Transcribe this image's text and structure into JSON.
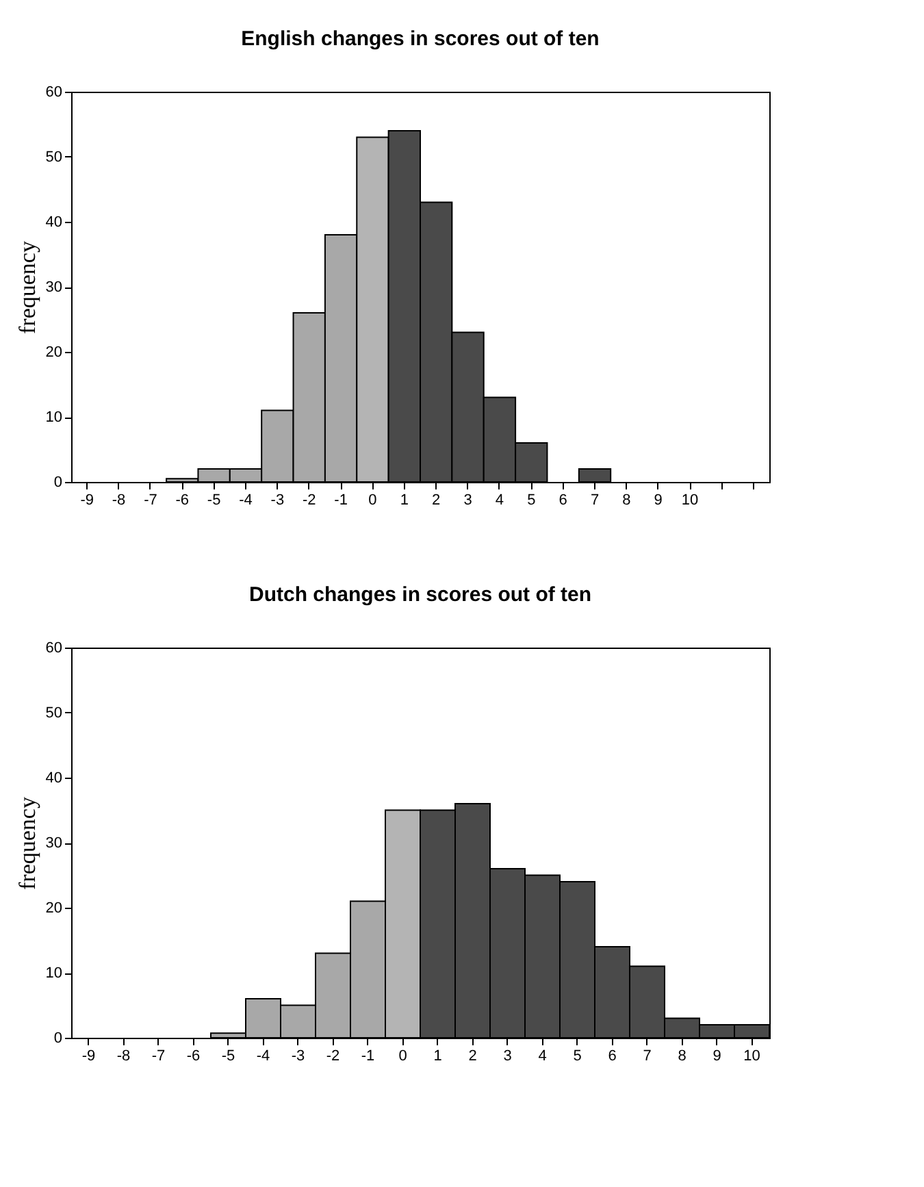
{
  "chart_data": [
    {
      "type": "bar",
      "title": "English changes in scores out of ten",
      "ylabel": "frequency",
      "categories": [
        "-9",
        "-8",
        "-7",
        "-6",
        "-5",
        "-4",
        "-3",
        "-2",
        "-1",
        "0",
        "1",
        "2",
        "3",
        "4",
        "5",
        "6",
        "7",
        "8",
        "9",
        "10",
        null,
        null
      ],
      "values": [
        0,
        0,
        0,
        0.5,
        2,
        2,
        11,
        26,
        38,
        53,
        54,
        43,
        23,
        13,
        6,
        0,
        2,
        0,
        0,
        0,
        0,
        0
      ],
      "colors": [
        "#a8a8a8",
        "#a8a8a8",
        "#a8a8a8",
        "#a8a8a8",
        "#a8a8a8",
        "#a8a8a8",
        "#a8a8a8",
        "#a8a8a8",
        "#a8a8a8",
        "#b4b4b4",
        "#4a4a4a",
        "#4a4a4a",
        "#4a4a4a",
        "#4a4a4a",
        "#4a4a4a",
        "#4a4a4a",
        "#4a4a4a",
        "#4a4a4a",
        "#4a4a4a",
        "#4a4a4a",
        "#4a4a4a",
        "#4a4a4a"
      ],
      "ylim": [
        0,
        60
      ],
      "yticks": [
        0,
        10,
        20,
        30,
        40,
        50,
        60
      ]
    },
    {
      "type": "bar",
      "title": "Dutch changes in scores out of ten",
      "ylabel": "frequency",
      "categories": [
        "-9",
        "-8",
        "-7",
        "-6",
        "-5",
        "-4",
        "-3",
        "-2",
        "-1",
        "0",
        "1",
        "2",
        "3",
        "4",
        "5",
        "6",
        "7",
        "8",
        "9",
        "10"
      ],
      "values": [
        0,
        0,
        0,
        0,
        0.7,
        6,
        5,
        13,
        21,
        35,
        35,
        36,
        26,
        25,
        24,
        14,
        11,
        3,
        2,
        2
      ],
      "colors": [
        "#a8a8a8",
        "#a8a8a8",
        "#a8a8a8",
        "#a8a8a8",
        "#a8a8a8",
        "#a8a8a8",
        "#a8a8a8",
        "#a8a8a8",
        "#a8a8a8",
        "#b4b4b4",
        "#4a4a4a",
        "#4a4a4a",
        "#4a4a4a",
        "#4a4a4a",
        "#4a4a4a",
        "#4a4a4a",
        "#4a4a4a",
        "#4a4a4a",
        "#4a4a4a",
        "#4a4a4a"
      ],
      "ylim": [
        0,
        60
      ],
      "yticks": [
        0,
        10,
        20,
        30,
        40,
        50,
        60
      ]
    }
  ]
}
